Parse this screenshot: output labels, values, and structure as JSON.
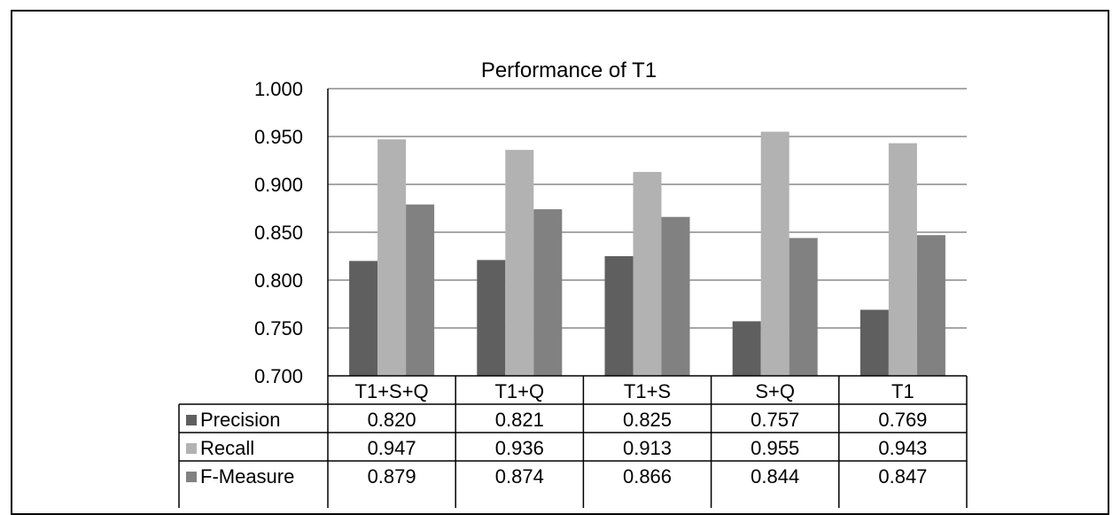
{
  "chart_data": {
    "type": "bar",
    "title": "Performance of T1",
    "xlabel": "",
    "ylabel": "",
    "categories": [
      "T1+S+Q",
      "T1+Q",
      "T1+S",
      "S+Q",
      "T1"
    ],
    "ylim": [
      0.7,
      1.0
    ],
    "ytick_step": 0.05,
    "ytick_labels": [
      "0.700",
      "0.750",
      "0.800",
      "0.850",
      "0.900",
      "0.950",
      "1.000"
    ],
    "grid": true,
    "legend": "data-table",
    "series": [
      {
        "name": "Precision",
        "color": "#5f5f5f",
        "values": [
          0.82,
          0.821,
          0.825,
          0.757,
          0.769
        ],
        "labels": [
          "0.820",
          "0.821",
          "0.825",
          "0.757",
          "0.769"
        ]
      },
      {
        "name": "Recall",
        "color": "#b2b2b2",
        "values": [
          0.947,
          0.936,
          0.913,
          0.955,
          0.943
        ],
        "labels": [
          "0.947",
          "0.936",
          "0.913",
          "0.955",
          "0.943"
        ]
      },
      {
        "name": "F-Measure",
        "color": "#818181",
        "values": [
          0.879,
          0.874,
          0.866,
          0.844,
          0.847
        ],
        "labels": [
          "0.879",
          "0.874",
          "0.866",
          "0.844",
          "0.847"
        ]
      }
    ]
  }
}
